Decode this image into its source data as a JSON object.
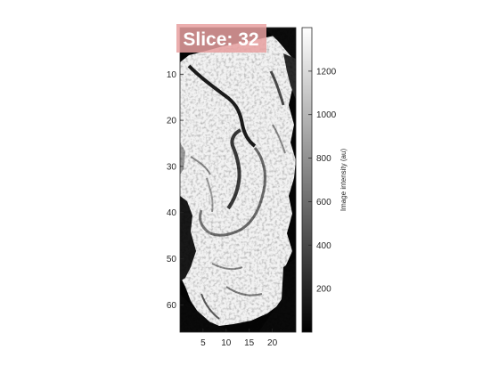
{
  "image_panel": {
    "slice_label": "Slice: 32",
    "x_ticks": [
      "5",
      "10",
      "15",
      "20"
    ],
    "y_ticks": [
      "10",
      "20",
      "30",
      "40",
      "50",
      "60"
    ],
    "colormap": "gray"
  },
  "colorbar": {
    "label": "Image intensity (au)",
    "ticks": [
      "200",
      "400",
      "600",
      "800",
      "1000",
      "1200"
    ],
    "range": [
      0,
      1400
    ]
  },
  "colors": {
    "badge": "#e8a0a0",
    "axis": "#262626",
    "background": "#ffffff"
  }
}
